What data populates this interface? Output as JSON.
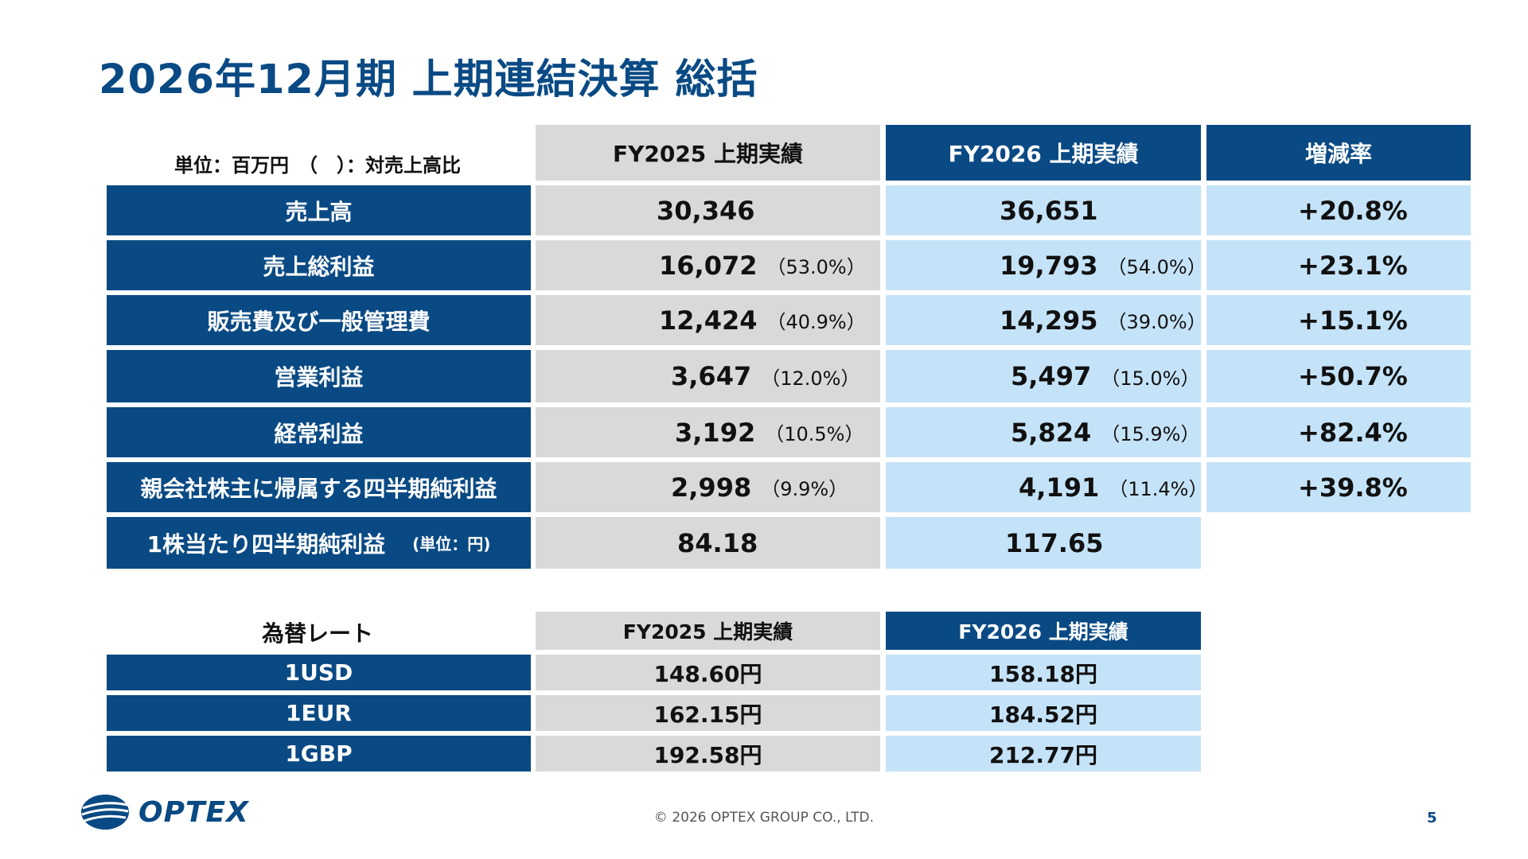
{
  "title": "2026年12月期 上期連結決算 総括",
  "unit_note": "単位：百万円　（　）：対売上高比",
  "headers": {
    "fy2025": "FY2025 上期実績",
    "fy2026": "FY2026 上期実績",
    "rate": "増減率"
  },
  "rows": [
    {
      "label": "売上高",
      "fy2025": "30,346",
      "fy2025_ratio": "",
      "fy2026": "36,651",
      "fy2026_ratio": "",
      "rate": "+20.8%"
    },
    {
      "label": "売上総利益",
      "fy2025": "16,072",
      "fy2025_ratio": "（53.0%）",
      "fy2026": "19,793",
      "fy2026_ratio": "（54.0%）",
      "rate": "+23.1%"
    },
    {
      "label": "販売費及び一般管理費",
      "fy2025": "12,424",
      "fy2025_ratio": "（40.9%）",
      "fy2026": "14,295",
      "fy2026_ratio": "（39.0%）",
      "rate": "+15.1%"
    },
    {
      "label": "営業利益",
      "fy2025": "3,647",
      "fy2025_ratio": "（12.0%）",
      "fy2026": "5,497",
      "fy2026_ratio": "（15.0%）",
      "rate": "+50.7%"
    },
    {
      "label": "経常利益",
      "fy2025": "3,192",
      "fy2025_ratio": "（10.5%）",
      "fy2026": "5,824",
      "fy2026_ratio": "（15.9%）",
      "rate": "+82.4%"
    },
    {
      "label": "親会社株主に帰属する四半期純利益",
      "fy2025": "2,998",
      "fy2025_ratio": "（9.9%）",
      "fy2026": "4,191",
      "fy2026_ratio": "（11.4%）",
      "rate": "+39.8%"
    }
  ],
  "eps": {
    "label": "1株当たり四半期純利益",
    "unit": "(単位：円)",
    "fy2025": "84.18",
    "fy2026": "117.65"
  },
  "fx": {
    "title": "為替レート",
    "fy2025_header": "FY2025 上期実績",
    "fy2026_header": "FY2026 上期実績",
    "rows": [
      {
        "label": "1USD",
        "fy2025": "148.60円",
        "fy2026": "158.18円"
      },
      {
        "label": "1EUR",
        "fy2025": "162.15円",
        "fy2026": "184.52円"
      },
      {
        "label": "1GBP",
        "fy2025": "192.58円",
        "fy2026": "212.77円"
      }
    ]
  },
  "footer": "© 2026 OPTEX GROUP CO., LTD.",
  "page_number": "5",
  "logo_text": "OPTEX",
  "colors": {
    "navy": "#0a4a84",
    "gray": "#d9d9d9",
    "light_blue": "#c5e3f8"
  }
}
